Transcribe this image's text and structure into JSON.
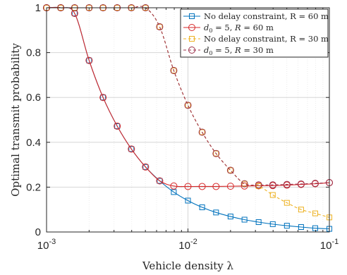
{
  "chart_data": {
    "type": "line",
    "xscale": "log",
    "xlim": [
      0.001,
      0.1
    ],
    "ylim": [
      0,
      1
    ],
    "grid": true,
    "legend_position": "top-right",
    "xlabel": "Vehicle density λ",
    "ylabel": "Optimal transmit probability",
    "x_ticks": [
      {
        "value": 0.001,
        "base": "10",
        "exp": "-3"
      },
      {
        "value": 0.01,
        "base": "10",
        "exp": "-2"
      },
      {
        "value": 0.1,
        "base": "10",
        "exp": "-1"
      }
    ],
    "y_ticks": [
      {
        "value": 0,
        "label": "0"
      },
      {
        "value": 0.2,
        "label": "0.2"
      },
      {
        "value": 0.4,
        "label": "0.4"
      },
      {
        "value": 0.6,
        "label": "0.6"
      },
      {
        "value": 0.8,
        "label": "0.8"
      },
      {
        "value": 1,
        "label": "1"
      }
    ],
    "series": [
      {
        "name": "No delay constraint, R = 60 m",
        "legend_parts": [
          {
            "t": "No delay constraint, R = 60 m"
          }
        ],
        "color": "#0072BD",
        "dash": false,
        "marker": "square",
        "x": [
          0.001,
          0.00126,
          0.00158,
          0.002,
          0.00251,
          0.00316,
          0.00398,
          0.00501,
          0.00631,
          0.00794,
          0.01,
          0.0126,
          0.0158,
          0.02,
          0.0251,
          0.0316,
          0.0398,
          0.0501,
          0.0631,
          0.0794,
          0.1
        ],
        "y": [
          1.0,
          1.0,
          0.975,
          0.765,
          0.6,
          0.472,
          0.37,
          0.29,
          0.228,
          0.178,
          0.14,
          0.11,
          0.087,
          0.069,
          0.055,
          0.044,
          0.035,
          0.028,
          0.022,
          0.017,
          0.014
        ]
      },
      {
        "name": "d0 = 5, R = 60 m",
        "legend_parts": [
          {
            "t": "d",
            "i": true
          },
          {
            "t": "0",
            "sub": true
          },
          {
            "t": " = 5, "
          },
          {
            "t": "R",
            "i": true
          },
          {
            "t": " = 60 m"
          }
        ],
        "color": "#D62728",
        "dash": false,
        "marker": "circle",
        "x": [
          0.001,
          0.00126,
          0.00158,
          0.002,
          0.00251,
          0.00316,
          0.00398,
          0.00501,
          0.00631,
          0.00794,
          0.01,
          0.0126,
          0.0158,
          0.02,
          0.0251,
          0.0316,
          0.0398,
          0.0501,
          0.0631,
          0.0794,
          0.1
        ],
        "y": [
          1.0,
          1.0,
          0.975,
          0.765,
          0.6,
          0.472,
          0.37,
          0.29,
          0.228,
          0.205,
          0.203,
          0.203,
          0.203,
          0.204,
          0.205,
          0.206,
          0.207,
          0.209,
          0.212,
          0.215,
          0.22
        ]
      },
      {
        "name": "No delay constraint, R = 30 m",
        "legend_parts": [
          {
            "t": "No delay constraint, R = 30 m"
          }
        ],
        "color": "#EDB120",
        "dash": true,
        "marker": "square",
        "x": [
          0.001,
          0.00126,
          0.00158,
          0.002,
          0.00251,
          0.00316,
          0.00398,
          0.00501,
          0.00631,
          0.00794,
          0.01,
          0.0126,
          0.0158,
          0.02,
          0.0251,
          0.0316,
          0.0398,
          0.0501,
          0.0631,
          0.0794,
          0.1
        ],
        "y": [
          1.0,
          1.0,
          1.0,
          1.0,
          1.0,
          1.0,
          1.0,
          1.0,
          0.915,
          0.72,
          0.565,
          0.445,
          0.35,
          0.275,
          0.215,
          0.205,
          0.165,
          0.13,
          0.1,
          0.083,
          0.065
        ]
      },
      {
        "name": "d0 = 5, R = 30 m",
        "legend_parts": [
          {
            "t": "d",
            "i": true
          },
          {
            "t": "0",
            "sub": true
          },
          {
            "t": " = 5, "
          },
          {
            "t": "R",
            "i": true
          },
          {
            "t": " = 30 m"
          }
        ],
        "color": "#9B2F4A",
        "dash": true,
        "marker": "circle",
        "x": [
          0.001,
          0.00126,
          0.00158,
          0.002,
          0.00251,
          0.00316,
          0.00398,
          0.00501,
          0.00631,
          0.00794,
          0.01,
          0.0126,
          0.0158,
          0.02,
          0.0251,
          0.0316,
          0.0398,
          0.0501,
          0.0631,
          0.0794,
          0.1
        ],
        "y": [
          1.0,
          1.0,
          1.0,
          1.0,
          1.0,
          1.0,
          1.0,
          1.0,
          0.915,
          0.72,
          0.565,
          0.445,
          0.35,
          0.275,
          0.215,
          0.21,
          0.21,
          0.212,
          0.214,
          0.217,
          0.22
        ]
      }
    ]
  }
}
